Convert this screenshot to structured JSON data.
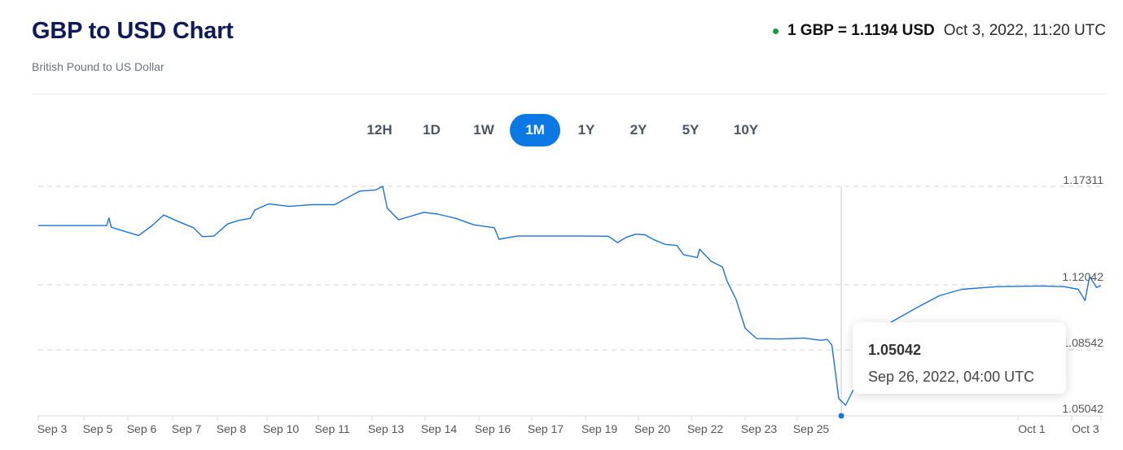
{
  "header": {
    "title": "GBP to USD Chart",
    "subtitle": "British Pound to US Dollar",
    "live_rate": "1 GBP = 1.1194 USD",
    "timestamp": "Oct 3, 2022, 11:20 UTC",
    "status_color": "#1a9c3e"
  },
  "range_tabs": [
    {
      "label": "12H",
      "active": false
    },
    {
      "label": "1D",
      "active": false
    },
    {
      "label": "1W",
      "active": false
    },
    {
      "label": "1M",
      "active": true
    },
    {
      "label": "1Y",
      "active": false
    },
    {
      "label": "2Y",
      "active": false
    },
    {
      "label": "5Y",
      "active": false
    },
    {
      "label": "10Y",
      "active": false
    }
  ],
  "tooltip": {
    "value": "1.05042",
    "date": "Sep 26, 2022, 04:00 UTC"
  },
  "chart_data": {
    "type": "line",
    "y_ticks": [
      "1.17311",
      "1.12042",
      "1.08542",
      "1.05042"
    ],
    "ylim": [
      1.05042,
      1.17311
    ],
    "x_tick_labels": [
      "Sep 3",
      "Sep 5",
      "Sep 6",
      "Sep 7",
      "Sep 8",
      "Sep 10",
      "Sep 11",
      "Sep 13",
      "Sep 14",
      "Sep 16",
      "Sep 17",
      "Sep 19",
      "Sep 20",
      "Sep 22",
      "Sep 23",
      "Sep 25",
      "Oct 1",
      "Oct 3"
    ],
    "line_color": "#1a73d9",
    "grid": "dashed horizontal",
    "series": [
      {
        "values": [
          [
            0.0,
            1.1521
          ],
          [
            3.0,
            1.1521
          ],
          [
            3.1,
            1.1562
          ],
          [
            3.2,
            1.1512
          ],
          [
            4.4,
            1.1468
          ],
          [
            5.0,
            1.1522
          ],
          [
            5.5,
            1.1578
          ],
          [
            6.1,
            1.1545
          ],
          [
            6.8,
            1.151
          ],
          [
            7.2,
            1.1462
          ],
          [
            7.7,
            1.1465
          ],
          [
            8.3,
            1.153
          ],
          [
            8.8,
            1.1549
          ],
          [
            9.3,
            1.156
          ],
          [
            9.5,
            1.1605
          ],
          [
            10.1,
            1.1637
          ],
          [
            11.0,
            1.1624
          ],
          [
            12.0,
            1.1633
          ],
          [
            13.0,
            1.1633
          ],
          [
            13.4,
            1.166
          ],
          [
            14.1,
            1.1706
          ],
          [
            14.8,
            1.1712
          ],
          [
            15.1,
            1.1731
          ],
          [
            15.3,
            1.1615
          ],
          [
            15.8,
            1.1552
          ],
          [
            16.3,
            1.157
          ],
          [
            16.9,
            1.1592
          ],
          [
            17.5,
            1.1583
          ],
          [
            18.3,
            1.156
          ],
          [
            19.1,
            1.1525
          ],
          [
            20.0,
            1.151
          ],
          [
            20.2,
            1.1448
          ],
          [
            21.0,
            1.1465
          ],
          [
            22.0,
            1.1465
          ],
          [
            24.0,
            1.1465
          ],
          [
            25.0,
            1.1464
          ],
          [
            25.4,
            1.143
          ],
          [
            25.8,
            1.146
          ],
          [
            26.2,
            1.1475
          ],
          [
            26.6,
            1.1472
          ],
          [
            27.0,
            1.1445
          ],
          [
            27.5,
            1.142
          ],
          [
            28.0,
            1.1415
          ],
          [
            28.3,
            1.1365
          ],
          [
            28.9,
            1.135
          ],
          [
            29.0,
            1.1395
          ],
          [
            29.5,
            1.133
          ],
          [
            30.0,
            1.13
          ],
          [
            30.2,
            1.1225
          ],
          [
            30.6,
            1.1125
          ],
          [
            31.0,
            1.097
          ],
          [
            31.5,
            1.0915
          ],
          [
            32.5,
            1.0913
          ],
          [
            33.6,
            1.0918
          ],
          [
            34.3,
            1.0906
          ],
          [
            34.6,
            1.091
          ],
          [
            34.8,
            1.088
          ],
          [
            35.1,
            1.0546
          ],
          [
            35.4,
            1.0504
          ],
          [
            35.8,
            1.062
          ],
          [
            36.3,
            1.078
          ],
          [
            37.2,
            1.099
          ],
          [
            38.5,
            1.108
          ],
          [
            39.5,
            1.1145
          ],
          [
            40.5,
            1.118
          ],
          [
            42.0,
            1.1194
          ],
          [
            44.0,
            1.1198
          ],
          [
            45.0,
            1.1194
          ],
          [
            45.6,
            1.118
          ],
          [
            45.9,
            1.112
          ],
          [
            46.1,
            1.125
          ],
          [
            46.4,
            1.119
          ],
          [
            46.6,
            1.12
          ]
        ]
      }
    ]
  }
}
